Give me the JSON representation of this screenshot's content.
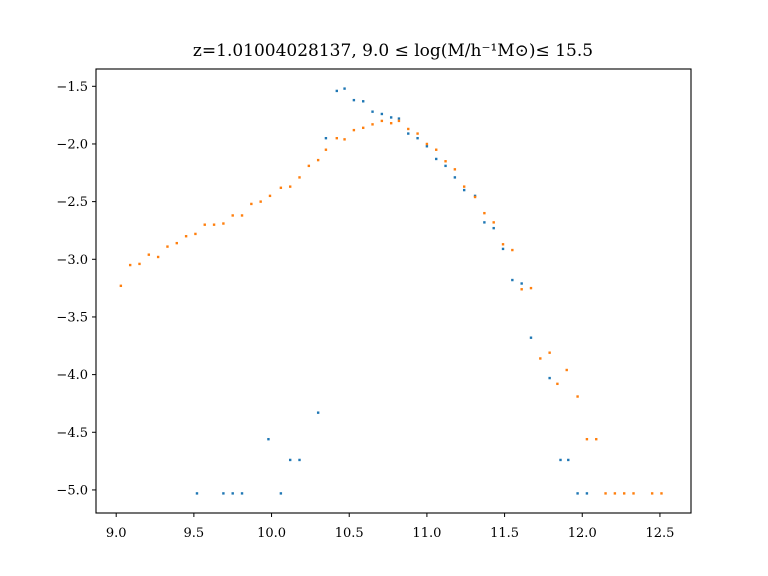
{
  "chart_data": {
    "type": "scatter",
    "title": "z=1.01004028137, 9.0 ≤ log(M/h⁻¹M⊙)≤ 15.5",
    "xlabel": "",
    "ylabel": "",
    "xlim": [
      8.87,
      12.7
    ],
    "ylim": [
      -5.2,
      -1.35
    ],
    "xticks": [
      9.0,
      9.5,
      10.0,
      10.5,
      11.0,
      11.5,
      12.0,
      12.5
    ],
    "xtick_labels": [
      "9.0",
      "9.5",
      "10.0",
      "10.5",
      "11.0",
      "11.5",
      "12.0",
      "12.5"
    ],
    "yticks": [
      -1.5,
      -2.0,
      -2.5,
      -3.0,
      -3.5,
      -4.0,
      -4.5,
      -5.0
    ],
    "ytick_labels": [
      "−1.5",
      "−2.0",
      "−2.5",
      "−3.0",
      "−3.5",
      "−4.0",
      "−4.5",
      "−5.0"
    ],
    "grid": false,
    "legend": "none",
    "series": [
      {
        "color": "#1f77b4",
        "points": [
          [
            9.52,
            -5.03
          ],
          [
            9.69,
            -5.03
          ],
          [
            9.75,
            -5.03
          ],
          [
            9.81,
            -5.03
          ],
          [
            9.98,
            -4.56
          ],
          [
            10.06,
            -5.03
          ],
          [
            10.12,
            -4.74
          ],
          [
            10.18,
            -4.74
          ],
          [
            10.3,
            -4.33
          ],
          [
            10.35,
            -1.95
          ],
          [
            10.42,
            -1.54
          ],
          [
            10.47,
            -1.52
          ],
          [
            10.53,
            -1.62
          ],
          [
            10.59,
            -1.63
          ],
          [
            10.65,
            -1.72
          ],
          [
            10.71,
            -1.74
          ],
          [
            10.77,
            -1.77
          ],
          [
            10.82,
            -1.78
          ],
          [
            10.88,
            -1.91
          ],
          [
            10.94,
            -1.95
          ],
          [
            11.0,
            -2.02
          ],
          [
            11.06,
            -2.13
          ],
          [
            11.12,
            -2.19
          ],
          [
            11.18,
            -2.29
          ],
          [
            11.24,
            -2.4
          ],
          [
            11.31,
            -2.45
          ],
          [
            11.37,
            -2.68
          ],
          [
            11.43,
            -2.73
          ],
          [
            11.49,
            -2.91
          ],
          [
            11.55,
            -3.18
          ],
          [
            11.61,
            -3.21
          ],
          [
            11.67,
            -3.68
          ],
          [
            11.79,
            -4.03
          ],
          [
            11.86,
            -4.74
          ],
          [
            11.91,
            -4.74
          ],
          [
            11.97,
            -5.03
          ],
          [
            12.03,
            -5.03
          ]
        ]
      },
      {
        "color": "#ff7f0e",
        "points": [
          [
            9.03,
            -3.23
          ],
          [
            9.09,
            -3.05
          ],
          [
            9.15,
            -3.04
          ],
          [
            9.21,
            -2.96
          ],
          [
            9.27,
            -2.98
          ],
          [
            9.33,
            -2.89
          ],
          [
            9.39,
            -2.86
          ],
          [
            9.45,
            -2.8
          ],
          [
            9.51,
            -2.78
          ],
          [
            9.57,
            -2.7
          ],
          [
            9.63,
            -2.7
          ],
          [
            9.69,
            -2.69
          ],
          [
            9.75,
            -2.62
          ],
          [
            9.81,
            -2.62
          ],
          [
            9.87,
            -2.52
          ],
          [
            9.93,
            -2.5
          ],
          [
            9.99,
            -2.45
          ],
          [
            10.06,
            -2.38
          ],
          [
            10.12,
            -2.37
          ],
          [
            10.18,
            -2.29
          ],
          [
            10.24,
            -2.19
          ],
          [
            10.3,
            -2.14
          ],
          [
            10.35,
            -2.05
          ],
          [
            10.42,
            -1.95
          ],
          [
            10.47,
            -1.96
          ],
          [
            10.53,
            -1.88
          ],
          [
            10.59,
            -1.86
          ],
          [
            10.65,
            -1.83
          ],
          [
            10.71,
            -1.8
          ],
          [
            10.77,
            -1.82
          ],
          [
            10.82,
            -1.8
          ],
          [
            10.88,
            -1.87
          ],
          [
            10.94,
            -1.91
          ],
          [
            11.0,
            -2.0
          ],
          [
            11.06,
            -2.05
          ],
          [
            11.12,
            -2.15
          ],
          [
            11.18,
            -2.22
          ],
          [
            11.24,
            -2.37
          ],
          [
            11.31,
            -2.46
          ],
          [
            11.37,
            -2.6
          ],
          [
            11.43,
            -2.68
          ],
          [
            11.49,
            -2.87
          ],
          [
            11.55,
            -2.92
          ],
          [
            11.61,
            -3.26
          ],
          [
            11.67,
            -3.25
          ],
          [
            11.73,
            -3.86
          ],
          [
            11.79,
            -3.81
          ],
          [
            11.84,
            -4.08
          ],
          [
            11.9,
            -3.96
          ],
          [
            11.97,
            -4.19
          ],
          [
            12.03,
            -4.56
          ],
          [
            12.09,
            -4.56
          ],
          [
            12.15,
            -5.03
          ],
          [
            12.21,
            -5.03
          ],
          [
            12.27,
            -5.03
          ],
          [
            12.33,
            -5.03
          ],
          [
            12.45,
            -5.03
          ],
          [
            12.51,
            -5.03
          ]
        ]
      }
    ]
  }
}
